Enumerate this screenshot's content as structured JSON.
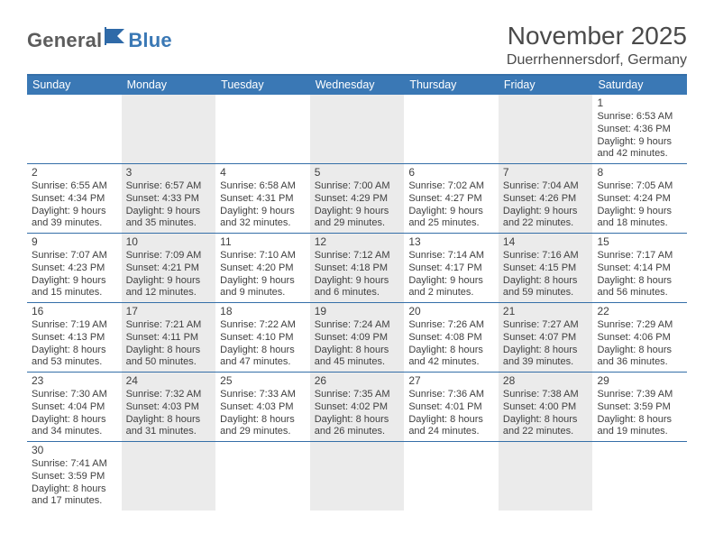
{
  "logo": {
    "part1": "General",
    "part2": "Blue"
  },
  "title": "November 2025",
  "subtitle": "Duerrhennersdorf, Germany",
  "colors": {
    "header_bg": "#3a78b5",
    "border": "#356fa8",
    "alt_cell": "#ebebeb",
    "text": "#3f3f3f",
    "logo_gray": "#5c5c5c",
    "logo_blue": "#3a78b5"
  },
  "day_headers": [
    "Sunday",
    "Monday",
    "Tuesday",
    "Wednesday",
    "Thursday",
    "Friday",
    "Saturday"
  ],
  "weeks": [
    [
      null,
      null,
      null,
      null,
      null,
      null,
      {
        "n": "1",
        "sr": "6:53 AM",
        "ss": "4:36 PM",
        "dl": "9 hours and 42 minutes."
      }
    ],
    [
      {
        "n": "2",
        "sr": "6:55 AM",
        "ss": "4:34 PM",
        "dl": "9 hours and 39 minutes."
      },
      {
        "n": "3",
        "sr": "6:57 AM",
        "ss": "4:33 PM",
        "dl": "9 hours and 35 minutes."
      },
      {
        "n": "4",
        "sr": "6:58 AM",
        "ss": "4:31 PM",
        "dl": "9 hours and 32 minutes."
      },
      {
        "n": "5",
        "sr": "7:00 AM",
        "ss": "4:29 PM",
        "dl": "9 hours and 29 minutes."
      },
      {
        "n": "6",
        "sr": "7:02 AM",
        "ss": "4:27 PM",
        "dl": "9 hours and 25 minutes."
      },
      {
        "n": "7",
        "sr": "7:04 AM",
        "ss": "4:26 PM",
        "dl": "9 hours and 22 minutes."
      },
      {
        "n": "8",
        "sr": "7:05 AM",
        "ss": "4:24 PM",
        "dl": "9 hours and 18 minutes."
      }
    ],
    [
      {
        "n": "9",
        "sr": "7:07 AM",
        "ss": "4:23 PM",
        "dl": "9 hours and 15 minutes."
      },
      {
        "n": "10",
        "sr": "7:09 AM",
        "ss": "4:21 PM",
        "dl": "9 hours and 12 minutes."
      },
      {
        "n": "11",
        "sr": "7:10 AM",
        "ss": "4:20 PM",
        "dl": "9 hours and 9 minutes."
      },
      {
        "n": "12",
        "sr": "7:12 AM",
        "ss": "4:18 PM",
        "dl": "9 hours and 6 minutes."
      },
      {
        "n": "13",
        "sr": "7:14 AM",
        "ss": "4:17 PM",
        "dl": "9 hours and 2 minutes."
      },
      {
        "n": "14",
        "sr": "7:16 AM",
        "ss": "4:15 PM",
        "dl": "8 hours and 59 minutes."
      },
      {
        "n": "15",
        "sr": "7:17 AM",
        "ss": "4:14 PM",
        "dl": "8 hours and 56 minutes."
      }
    ],
    [
      {
        "n": "16",
        "sr": "7:19 AM",
        "ss": "4:13 PM",
        "dl": "8 hours and 53 minutes."
      },
      {
        "n": "17",
        "sr": "7:21 AM",
        "ss": "4:11 PM",
        "dl": "8 hours and 50 minutes."
      },
      {
        "n": "18",
        "sr": "7:22 AM",
        "ss": "4:10 PM",
        "dl": "8 hours and 47 minutes."
      },
      {
        "n": "19",
        "sr": "7:24 AM",
        "ss": "4:09 PM",
        "dl": "8 hours and 45 minutes."
      },
      {
        "n": "20",
        "sr": "7:26 AM",
        "ss": "4:08 PM",
        "dl": "8 hours and 42 minutes."
      },
      {
        "n": "21",
        "sr": "7:27 AM",
        "ss": "4:07 PM",
        "dl": "8 hours and 39 minutes."
      },
      {
        "n": "22",
        "sr": "7:29 AM",
        "ss": "4:06 PM",
        "dl": "8 hours and 36 minutes."
      }
    ],
    [
      {
        "n": "23",
        "sr": "7:30 AM",
        "ss": "4:04 PM",
        "dl": "8 hours and 34 minutes."
      },
      {
        "n": "24",
        "sr": "7:32 AM",
        "ss": "4:03 PM",
        "dl": "8 hours and 31 minutes."
      },
      {
        "n": "25",
        "sr": "7:33 AM",
        "ss": "4:03 PM",
        "dl": "8 hours and 29 minutes."
      },
      {
        "n": "26",
        "sr": "7:35 AM",
        "ss": "4:02 PM",
        "dl": "8 hours and 26 minutes."
      },
      {
        "n": "27",
        "sr": "7:36 AM",
        "ss": "4:01 PM",
        "dl": "8 hours and 24 minutes."
      },
      {
        "n": "28",
        "sr": "7:38 AM",
        "ss": "4:00 PM",
        "dl": "8 hours and 22 minutes."
      },
      {
        "n": "29",
        "sr": "7:39 AM",
        "ss": "3:59 PM",
        "dl": "8 hours and 19 minutes."
      }
    ],
    [
      {
        "n": "30",
        "sr": "7:41 AM",
        "ss": "3:59 PM",
        "dl": "8 hours and 17 minutes."
      },
      null,
      null,
      null,
      null,
      null,
      null
    ]
  ],
  "labels": {
    "sunrise": "Sunrise: ",
    "sunset": "Sunset: ",
    "daylight": "Daylight: "
  }
}
